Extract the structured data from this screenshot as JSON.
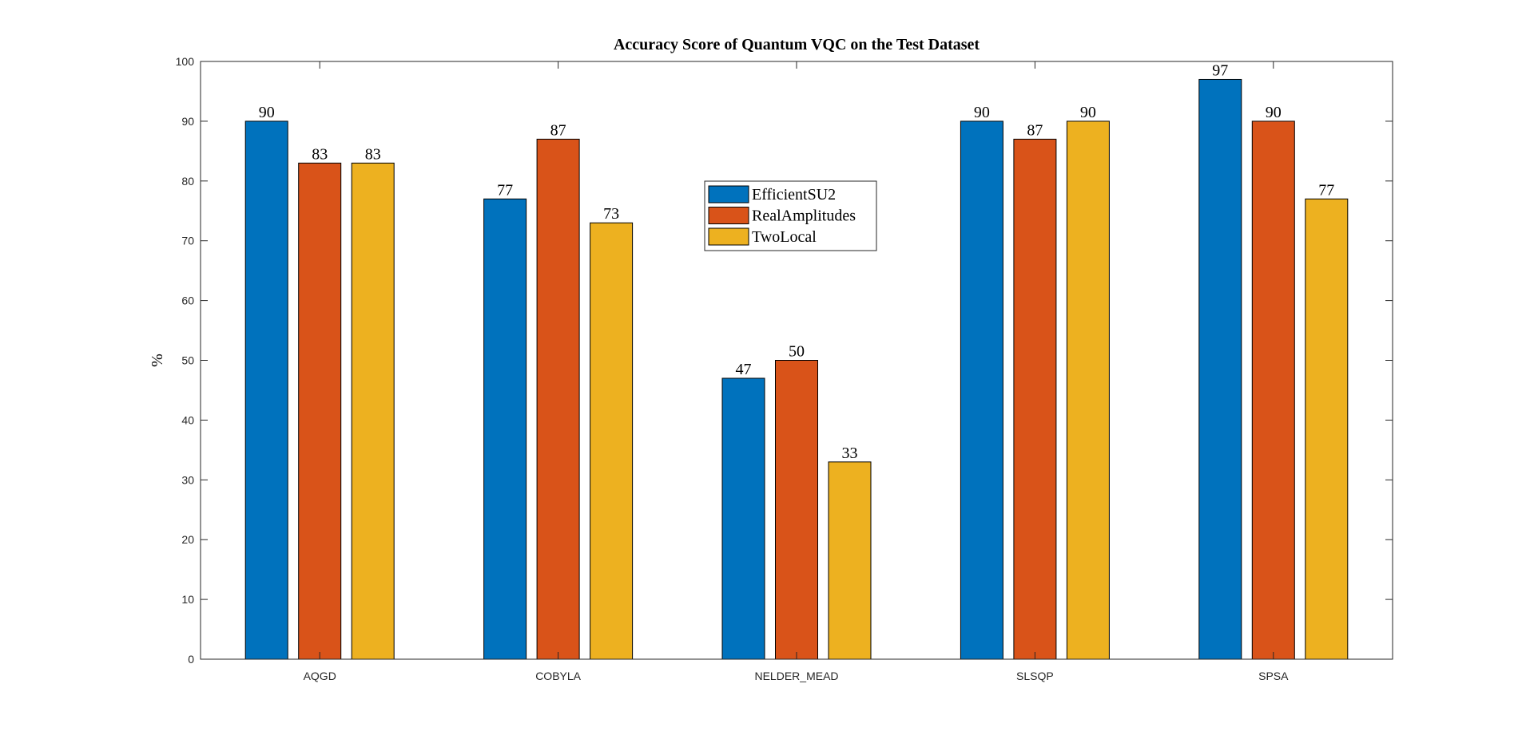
{
  "chart_data": {
    "type": "bar",
    "title": "Accuracy Score of Quantum VQC on the Test Dataset",
    "xlabel": "",
    "ylabel": "%",
    "ylim": [
      0,
      100
    ],
    "yticks": [
      0,
      10,
      20,
      30,
      40,
      50,
      60,
      70,
      80,
      90,
      100
    ],
    "categories": [
      "AQGD",
      "COBYLA",
      "NELDER_MEAD",
      "SLSQP",
      "SPSA"
    ],
    "series": [
      {
        "name": "EfficientSU2",
        "color": "#0072BD",
        "values": [
          90,
          77,
          47,
          90,
          97
        ]
      },
      {
        "name": "RealAmplitudes",
        "color": "#D95319",
        "values": [
          83,
          87,
          50,
          87,
          90
        ]
      },
      {
        "name": "TwoLocal",
        "color": "#EDB120",
        "values": [
          83,
          73,
          33,
          90,
          77
        ]
      }
    ],
    "grid": false,
    "legend_position": "top-center",
    "data_labels": true
  }
}
